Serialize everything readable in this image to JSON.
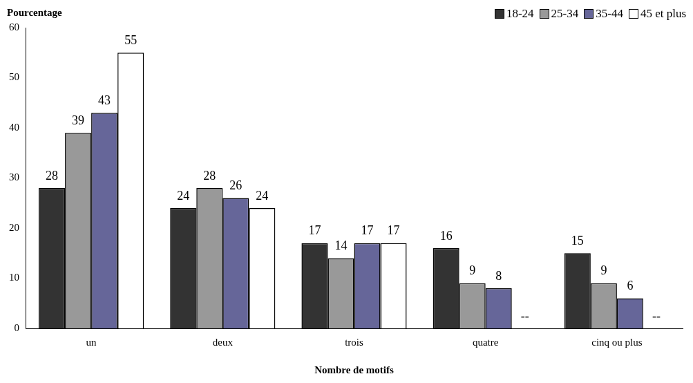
{
  "chart_data": {
    "type": "bar",
    "ylabel": "Pourcentage",
    "xlabel": "Nombre de motifs",
    "categories": [
      "un",
      "deux",
      "trois",
      "quatre",
      "cinq ou plus"
    ],
    "series": [
      {
        "name": "18-24",
        "color": "#333333",
        "values": [
          28,
          24,
          17,
          16,
          15
        ],
        "value_labels": [
          "28",
          "24",
          "17",
          "16",
          "15"
        ]
      },
      {
        "name": "25-34",
        "color": "#999999",
        "values": [
          39,
          28,
          14,
          9,
          9
        ],
        "value_labels": [
          "39",
          "28",
          "14",
          "9",
          "9"
        ]
      },
      {
        "name": "35-44",
        "color": "#666699",
        "values": [
          43,
          26,
          17,
          8,
          6
        ],
        "value_labels": [
          "43",
          "26",
          "17",
          "8",
          "6"
        ]
      },
      {
        "name": "45 et plus",
        "color": "#ffffff",
        "values": [
          55,
          24,
          17,
          null,
          null
        ],
        "value_labels": [
          "55",
          "24",
          "17",
          "--",
          "--"
        ]
      }
    ],
    "ylim": [
      0,
      60
    ],
    "yticks": [
      0,
      10,
      20,
      30,
      40,
      50,
      60
    ],
    "grid": false,
    "legend": "top right"
  }
}
